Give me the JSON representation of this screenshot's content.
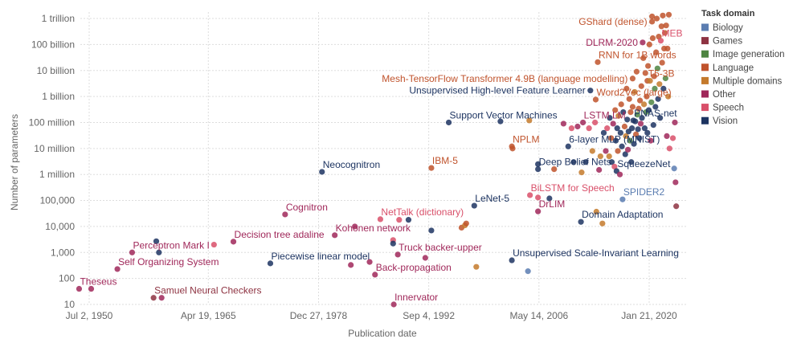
{
  "chart_data": {
    "type": "scatter",
    "xlabel": "Publication date",
    "ylabel": "Number of parameters",
    "y_scale": "log",
    "ylim": [
      10,
      1000000000000
    ],
    "grid": true,
    "legend_placement": "right",
    "x_ticks": [
      "Jul 2, 1950",
      "Apr 19, 1965",
      "Dec 27, 1978",
      "Sep 4, 1992",
      "May 14, 2006",
      "Jan 21, 2020"
    ],
    "x_tick_dates": [
      "1950-07-02",
      "1965-04-19",
      "1978-12-27",
      "1992-09-04",
      "2006-05-14",
      "2020-01-21"
    ],
    "y_ticks": [
      {
        "value": 1000000000000,
        "label": "1 trillion"
      },
      {
        "value": 100000000000,
        "label": "100 billion"
      },
      {
        "value": 10000000000,
        "label": "10 billion"
      },
      {
        "value": 1000000000,
        "label": "1 billion"
      },
      {
        "value": 100000000,
        "label": "100 million"
      },
      {
        "value": 10000000,
        "label": "10 million"
      },
      {
        "value": 1000000,
        "label": "1 million"
      },
      {
        "value": 100000,
        "label": "100,000"
      },
      {
        "value": 10000,
        "label": "10,000"
      },
      {
        "value": 1000,
        "label": "1,000"
      },
      {
        "value": 100,
        "label": "100"
      },
      {
        "value": 10,
        "label": "10"
      }
    ],
    "legend_title": "Task domain",
    "domains": [
      {
        "code": "B",
        "name": "Biology",
        "color": "#5B7DB1"
      },
      {
        "code": "G",
        "name": "Games",
        "color": "#8E3342"
      },
      {
        "code": "I",
        "name": "Image generation",
        "color": "#4E8542"
      },
      {
        "code": "L",
        "name": "Language",
        "color": "#C0532C"
      },
      {
        "code": "M",
        "name": "Multiple domains",
        "color": "#C47A2C"
      },
      {
        "code": "O",
        "name": "Other",
        "color": "#A0285A"
      },
      {
        "code": "S",
        "name": "Speech",
        "color": "#D9506A"
      },
      {
        "code": "V",
        "name": "Vision",
        "color": "#1D3461"
      }
    ],
    "points": [
      [
        "1949-04",
        40,
        "O",
        "Theseus"
      ],
      [
        "1950-10",
        40,
        "O",
        ""
      ],
      [
        "1954-01",
        230,
        "O",
        "Self Organizing System"
      ],
      [
        "1955-11",
        1000,
        "O",
        "Perceptron Mark I"
      ],
      [
        "1958-11",
        2700,
        "V",
        ""
      ],
      [
        "1959-03",
        1000,
        "V",
        ""
      ],
      [
        "1958-07",
        18,
        "G",
        "Samuel Neural Checkers"
      ],
      [
        "1959-07",
        18,
        "O",
        ""
      ],
      [
        "1966-01",
        2000,
        "S",
        ""
      ],
      [
        "1968-06",
        2600,
        "O",
        "Decision tree adaline"
      ],
      [
        "1973-01",
        380,
        "V",
        "Piecewise linear model"
      ],
      [
        "1974-11",
        29000,
        "O",
        "Cognitron"
      ],
      [
        "1979-06",
        1260000,
        "V",
        "Neocognitron"
      ],
      [
        "1981-01",
        4600,
        "O",
        "Kohonen network"
      ],
      [
        "1983-07",
        10000,
        "O",
        ""
      ],
      [
        "1983-01",
        330,
        "O",
        ""
      ],
      [
        "1985-05",
        430,
        "O",
        ""
      ],
      [
        "1986-01",
        140,
        "O",
        "Back-propagation"
      ],
      [
        "1986-09",
        19000,
        "S",
        "NetTalk (dictionary)"
      ],
      [
        "1988-04",
        3000,
        "S",
        ""
      ],
      [
        "1988-04",
        2200,
        "V",
        ""
      ],
      [
        "1988-05",
        10,
        "O",
        "Innervator"
      ],
      [
        "1988-11",
        830,
        "O",
        "Truck backer-upper"
      ],
      [
        "1989-01",
        18000,
        "S",
        ""
      ],
      [
        "1990-03",
        18000,
        "V",
        ""
      ],
      [
        "1992-04",
        620,
        "O",
        ""
      ],
      [
        "1993-01",
        7000,
        "V",
        ""
      ],
      [
        "1993-01",
        1780000,
        "L",
        "IBM-5"
      ],
      [
        "1995-03",
        100000000,
        "V",
        "Support Vector Machines"
      ],
      [
        "1996-10",
        9000,
        "L",
        ""
      ],
      [
        "1997-03",
        11000,
        "M",
        ""
      ],
      [
        "1997-05",
        13000,
        "L",
        ""
      ],
      [
        "1998-05",
        63000,
        "V",
        "LeNet-5"
      ],
      [
        "1998-08",
        280,
        "M",
        ""
      ],
      [
        "2001-08",
        110000000,
        "V",
        ""
      ],
      [
        "2003-01",
        500,
        "V",
        "Unsupervised Scale-Invariant Learning"
      ],
      [
        "2003-01",
        12000000,
        "L",
        "NPLM"
      ],
      [
        "2003-02",
        10000000,
        "L",
        ""
      ],
      [
        "2005-01",
        190,
        "B",
        ""
      ],
      [
        "2005-03",
        120000000,
        "M",
        ""
      ],
      [
        "2005-04",
        160000,
        "S",
        "BiLSTM for Speech"
      ],
      [
        "2006-04",
        130000,
        "S",
        ""
      ],
      [
        "2006-04",
        38000,
        "O",
        "DrLIM"
      ],
      [
        "2006-04",
        1600000,
        "V",
        "Deep Belief Nets"
      ],
      [
        "2006-04",
        2500000,
        "V",
        ""
      ],
      [
        "2007-09",
        120000,
        "V",
        ""
      ],
      [
        "2008-04",
        1600000,
        "L",
        ""
      ],
      [
        "2009-06",
        90000000,
        "O",
        ""
      ],
      [
        "2010-01",
        12000000,
        "V",
        "6-layer MLP (MNIST)"
      ],
      [
        "2010-06",
        60000000,
        "S",
        ""
      ],
      [
        "2010-09",
        3000000,
        "V",
        ""
      ],
      [
        "2011-03",
        70000000,
        "O",
        ""
      ],
      [
        "2011-08",
        15000,
        "V",
        "Domain Adaptation"
      ],
      [
        "2011-09",
        1200000,
        "M",
        ""
      ],
      [
        "2011-11",
        100000000,
        "O",
        "LSTM LM"
      ],
      [
        "2012-03",
        3000000,
        "V",
        ""
      ],
      [
        "2012-08",
        60000000,
        "S",
        ""
      ],
      [
        "2012-10",
        1700000000,
        "V",
        "Unsupervised High-level Feature Learner"
      ],
      [
        "2013-01",
        8000000,
        "M",
        ""
      ],
      [
        "2013-05",
        100000000,
        "S",
        ""
      ],
      [
        "2013-07",
        37000,
        "M",
        ""
      ],
      [
        "2013-06",
        760000000,
        "L",
        "Word2Vec (large)"
      ],
      [
        "2013-09",
        21000000000,
        "L",
        "RNN for 1B words"
      ],
      [
        "2013-11",
        1500000,
        "O",
        ""
      ],
      [
        "2014-01",
        5000000,
        "M",
        ""
      ],
      [
        "2014-04",
        13000,
        "M",
        ""
      ],
      [
        "2014-06",
        40000000,
        "V",
        ""
      ],
      [
        "2014-09",
        8000000,
        "O",
        ""
      ],
      [
        "2014-11",
        60000000,
        "S",
        ""
      ],
      [
        "2015-02",
        5000000,
        "M",
        ""
      ],
      [
        "2015-03",
        150000000,
        "V",
        ""
      ],
      [
        "2015-05",
        25000000,
        "L",
        ""
      ],
      [
        "2015-06",
        3000000,
        "V",
        ""
      ],
      [
        "2015-08",
        90000000,
        "O",
        ""
      ],
      [
        "2015-10",
        2000000,
        "S",
        ""
      ],
      [
        "2015-11",
        300000000,
        "L",
        ""
      ],
      [
        "2015-12",
        20000000,
        "V",
        ""
      ],
      [
        "2016-01",
        1350000,
        "V",
        "SqueezeNet"
      ],
      [
        "2016-02",
        60000000,
        "V",
        ""
      ],
      [
        "2016-03",
        8000000,
        "L",
        ""
      ],
      [
        "2016-04",
        180000000,
        "M",
        ""
      ],
      [
        "2016-06",
        1000000,
        "O",
        ""
      ],
      [
        "2016-07",
        40000000,
        "V",
        ""
      ],
      [
        "2016-08",
        500000000,
        "L",
        ""
      ],
      [
        "2016-09",
        12000000,
        "V",
        ""
      ],
      [
        "2016-10",
        110000,
        "B",
        "SPIDER2"
      ],
      [
        "2016-11",
        250000000,
        "V",
        ""
      ],
      [
        "2017-01",
        70000000,
        "L",
        ""
      ],
      [
        "2017-02",
        6000000,
        "V",
        ""
      ],
      [
        "2017-03",
        30000000,
        "M",
        ""
      ],
      [
        "2017-04",
        2000000000,
        "L",
        ""
      ],
      [
        "2017-05",
        130000000,
        "V",
        ""
      ],
      [
        "2017-06",
        9000000,
        "O",
        ""
      ],
      [
        "2017-07",
        45000000,
        "V",
        ""
      ],
      [
        "2017-08",
        800000000,
        "L",
        ""
      ],
      [
        "2017-09",
        20000000,
        "I",
        ""
      ],
      [
        "2017-10",
        250000000,
        "L",
        ""
      ],
      [
        "2017-11",
        3000000,
        "V",
        ""
      ],
      [
        "2017-12",
        60000000,
        "V",
        ""
      ],
      [
        "2018-01",
        4900000000,
        "L",
        "Mesh-TensorFlow Transformer 4.9B (language modelling)"
      ],
      [
        "2018-01",
        400000000,
        "L",
        ""
      ],
      [
        "2018-02",
        120000000,
        "V",
        "PNAS-net"
      ],
      [
        "2018-03",
        15000000,
        "V",
        ""
      ],
      [
        "2018-04",
        1500000000,
        "M",
        ""
      ],
      [
        "2018-05",
        110000000,
        "V",
        ""
      ],
      [
        "2018-06",
        35000000,
        "L",
        ""
      ],
      [
        "2018-07",
        9000000000,
        "L",
        ""
      ],
      [
        "2018-08",
        200000000,
        "I",
        ""
      ],
      [
        "2018-09",
        55000000,
        "V",
        ""
      ],
      [
        "2018-10",
        340000000,
        "L",
        ""
      ],
      [
        "2018-11",
        25000000,
        "V",
        ""
      ],
      [
        "2018-12",
        700000000,
        "L",
        ""
      ],
      [
        "2019-01",
        90000000,
        "O",
        ""
      ],
      [
        "2019-02",
        2500000000,
        "L",
        ""
      ],
      [
        "2019-03",
        150000000,
        "V",
        ""
      ],
      [
        "2019-04",
        120000000000,
        "O",
        "DLRM-2020"
      ],
      [
        "2019-05",
        30000000000,
        "L",
        ""
      ],
      [
        "2019-06",
        500000000,
        "M",
        ""
      ],
      [
        "2019-07",
        60000000,
        "V",
        ""
      ],
      [
        "2019-08",
        8000000000,
        "L",
        ""
      ],
      [
        "2019-09",
        250000000,
        "I",
        ""
      ],
      [
        "2019-10",
        1000000000,
        "L",
        ""
      ],
      [
        "2019-11",
        40000000,
        "V",
        ""
      ],
      [
        "2019-11",
        4000000000,
        "L",
        "T5-3B"
      ],
      [
        "2019-12",
        15000000000,
        "L",
        ""
      ],
      [
        "2020-01",
        300000000,
        "V",
        ""
      ],
      [
        "2020-02",
        100000000000,
        "L",
        ""
      ],
      [
        "2020-03",
        4000000000,
        "M",
        ""
      ],
      [
        "2020-04",
        20000000,
        "O",
        ""
      ],
      [
        "2020-05",
        600000000,
        "I",
        ""
      ],
      [
        "2020-06",
        760000000000,
        "L",
        "GShard (dense)"
      ],
      [
        "2020-06",
        1200000000000,
        "L",
        ""
      ],
      [
        "2020-07",
        175000000000,
        "L",
        ""
      ],
      [
        "2020-08",
        80000000,
        "V",
        ""
      ],
      [
        "2020-09",
        6000000000,
        "L",
        ""
      ],
      [
        "2020-10",
        2000000000,
        "I",
        ""
      ],
      [
        "2020-11",
        400000000,
        "V",
        ""
      ],
      [
        "2020-12",
        50000000000,
        "L",
        ""
      ],
      [
        "2021-01",
        1000000000000,
        "L",
        ""
      ],
      [
        "2021-02",
        12000000000,
        "I",
        ""
      ],
      [
        "2021-03",
        800000000,
        "V",
        ""
      ],
      [
        "2021-04",
        200000000000,
        "L",
        ""
      ],
      [
        "2021-05",
        3000000000,
        "M",
        ""
      ],
      [
        "2021-06",
        150000000,
        "V",
        ""
      ],
      [
        "2021-07",
        140000000000,
        "S",
        "MEB"
      ],
      [
        "2021-08",
        500000000000,
        "L",
        ""
      ],
      [
        "2021-09",
        20000000000,
        "L",
        ""
      ],
      [
        "2021-10",
        1300000000000,
        "L",
        ""
      ],
      [
        "2021-11",
        2000000000,
        "V",
        ""
      ],
      [
        "2021-12",
        70000000000,
        "L",
        ""
      ],
      [
        "2022-01",
        280000000000,
        "L",
        ""
      ],
      [
        "2022-02",
        5000000000,
        "I",
        ""
      ],
      [
        "2022-03",
        540000000000,
        "L",
        ""
      ],
      [
        "2022-04",
        30000000,
        "O",
        ""
      ],
      [
        "2022-05",
        70000000000,
        "L",
        ""
      ],
      [
        "2022-06",
        1000000000,
        "M",
        ""
      ],
      [
        "2022-07",
        1400000000000,
        "L",
        ""
      ],
      [
        "2022-08",
        10000000,
        "S",
        ""
      ],
      [
        "2023-01",
        25000000,
        "S",
        ""
      ],
      [
        "2023-03",
        1700000,
        "B",
        ""
      ],
      [
        "2023-04",
        100000000,
        "O",
        ""
      ],
      [
        "2023-05",
        500000,
        "O",
        ""
      ],
      [
        "2023-06",
        60000,
        "G",
        ""
      ]
    ]
  }
}
